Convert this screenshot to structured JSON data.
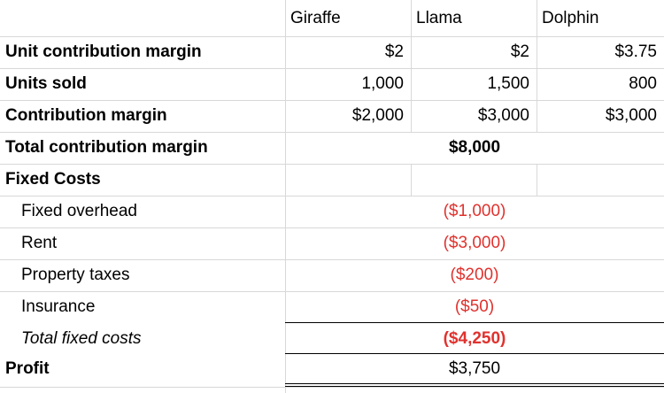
{
  "columns": [
    "Giraffe",
    "Llama",
    "Dolphin"
  ],
  "rows": [
    {
      "label": "Unit contribution margin",
      "values": [
        "$2",
        "$2",
        "$3.75"
      ]
    },
    {
      "label": "Units sold",
      "values": [
        "1,000",
        "1,500",
        "800"
      ]
    },
    {
      "label": "Contribution margin",
      "values": [
        "$2,000",
        "$3,000",
        "$3,000"
      ]
    }
  ],
  "total_contribution": {
    "label": "Total contribution margin",
    "value": "$8,000"
  },
  "fixed_costs": {
    "heading": "Fixed Costs",
    "items": [
      {
        "label": "Fixed overhead",
        "value": "($1,000)"
      },
      {
        "label": "Rent",
        "value": "($3,000)"
      },
      {
        "label": "Property taxes",
        "value": "($200)"
      },
      {
        "label": "Insurance",
        "value": "($50)"
      }
    ],
    "total": {
      "label": "Total fixed costs",
      "value": "($4,250)"
    }
  },
  "profit": {
    "label": "Profit",
    "value": "$3,750"
  },
  "colors": {
    "negative": "#e0322e",
    "gridline": "#d8d8d8"
  }
}
